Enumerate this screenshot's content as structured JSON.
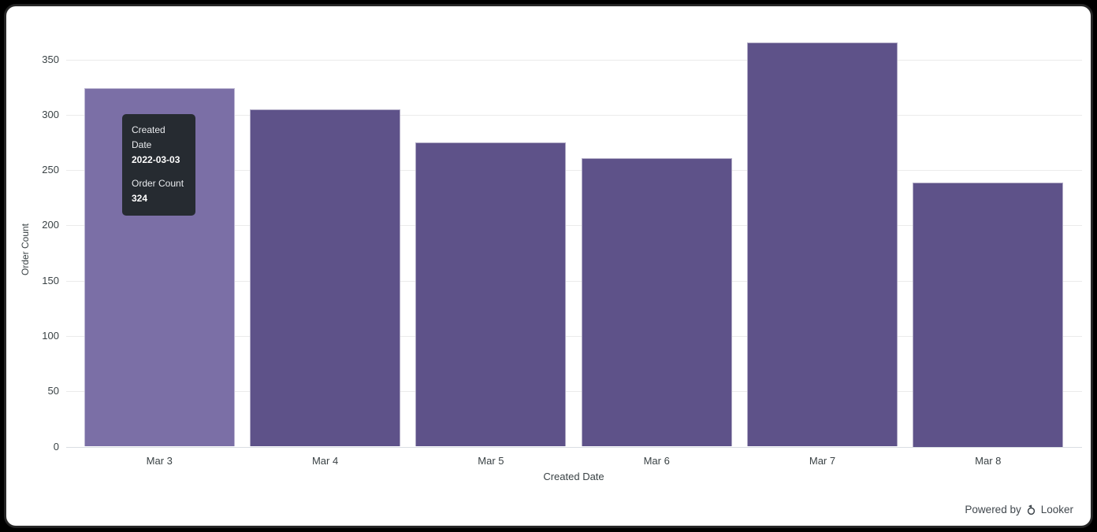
{
  "chart_data": {
    "type": "bar",
    "title": "",
    "categories": [
      "Mar 3",
      "Mar 4",
      "Mar 5",
      "Mar 6",
      "Mar 7",
      "Mar 8"
    ],
    "values": [
      324,
      305,
      275,
      261,
      365,
      239
    ],
    "xlabel": "Created Date",
    "ylabel": "Order Count",
    "y_ticks": [
      0,
      50,
      100,
      150,
      200,
      250,
      300,
      350
    ],
    "ylim": [
      0,
      385
    ],
    "grid": "horizontal-only",
    "legend": "none",
    "highlighted_index": 0
  },
  "tooltip": {
    "dimension_label": "Created Date",
    "dimension_value": "2022-03-03",
    "measure_label": "Order Count",
    "measure_value": "324"
  },
  "footer": {
    "powered_by_label": "Powered by",
    "brand_label": "Looker"
  },
  "colors": {
    "bar": "#5e5289",
    "bar_highlight": "#7b6fa6",
    "bar_border": "rgba(255,255,255,0.5)",
    "grid_line": "#ebebeb",
    "zero_line": "#d9dee3",
    "axis_text": "#3a4245",
    "tooltip_bg": "#262b31",
    "tooltip_text": "#ffffff",
    "footer_text": "#40474d"
  }
}
